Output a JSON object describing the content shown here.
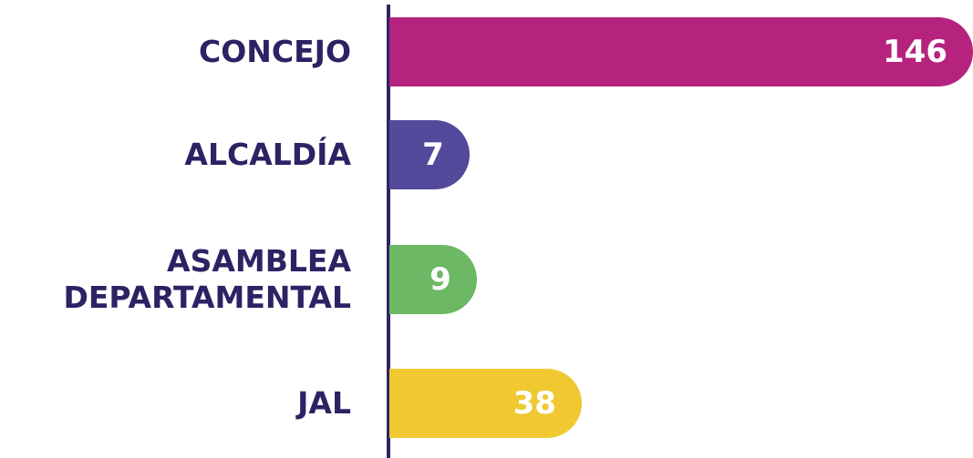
{
  "chart_data": {
    "type": "barh",
    "categories": [
      "CONCEJO",
      "ALCALDÍA",
      "ASAMBLEA DEPARTAMENTAL",
      "JAL"
    ],
    "values": [
      146,
      7,
      9,
      38
    ],
    "colors": [
      "#b5237f",
      "#534a9c",
      "#6cb864",
      "#f0c832"
    ]
  }
}
